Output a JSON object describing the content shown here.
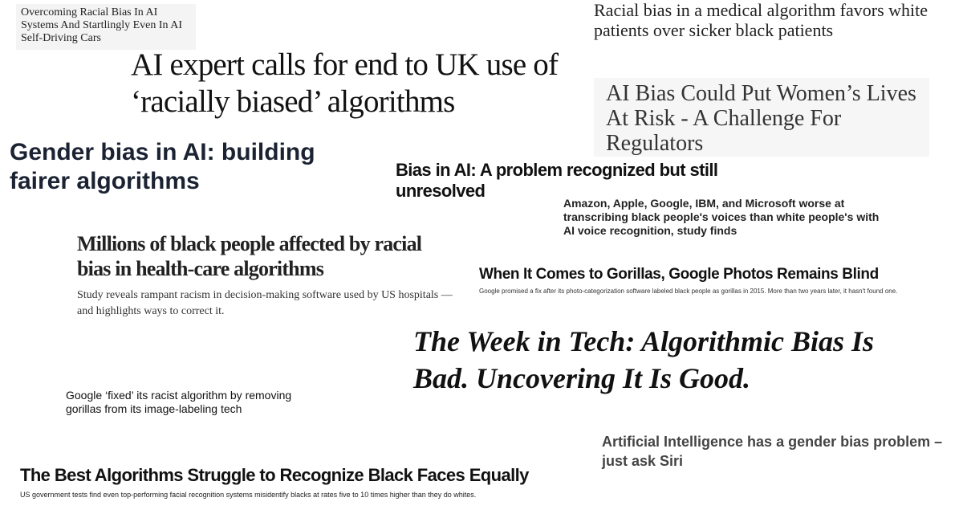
{
  "headlines": [
    {
      "title": "Overcoming Racial Bias In AI Systems And Startlingly Even In AI Self-Driving Cars"
    },
    {
      "title": "Racial bias in a medical algorithm favors white patients over sicker black patients"
    },
    {
      "title": "AI expert calls for end to UK use of ‘racially biased’ algorithms"
    },
    {
      "title": "AI Bias Could Put Women’s Lives At Risk - A Challenge For Regulators"
    },
    {
      "title": "Gender bias in AI: building fairer algorithms"
    },
    {
      "title": "Bias in AI: A problem recognized but still unresolved"
    },
    {
      "title": "Amazon, Apple, Google, IBM, and Microsoft worse at transcribing black people's voices than white people's with AI voice recognition, study finds"
    },
    {
      "title": "Millions of black people affected by racial bias in health-care algorithms",
      "subtitle": "Study reveals rampant racism in decision-making software used by US hospitals — and highlights ways to correct it."
    },
    {
      "title": "When It Comes to Gorillas, Google Photos Remains Blind",
      "subtitle": "Google promised a fix after its photo-categorization software labeled black people as gorillas in 2015. More than two years later, it hasn't found one."
    },
    {
      "title": "The Week in Tech: Algorithmic Bias Is Bad. Uncovering It Is Good."
    },
    {
      "title": "Google ‘fixed’ its racist algorithm by removing gorillas from its image-labeling tech"
    },
    {
      "title": "Artificial Intelligence has a gender bias problem – just ask Siri"
    },
    {
      "title": "The Best Algorithms Struggle to Recognize Black Faces Equally",
      "subtitle": "US government tests find even top-performing facial recognition systems misidentify blacks at rates five to 10 times higher than they do whites."
    }
  ]
}
